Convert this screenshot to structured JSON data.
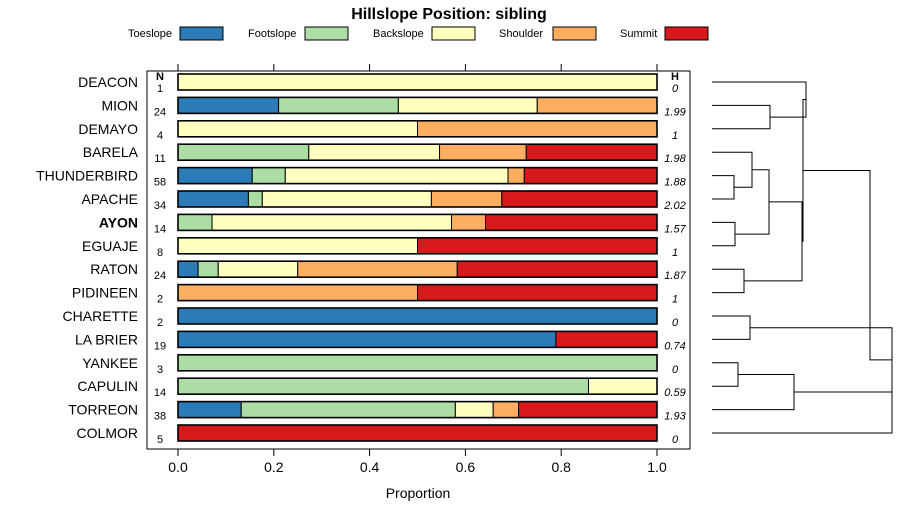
{
  "chart_data": {
    "type": "bar",
    "orientation": "horizontal",
    "stacked": true,
    "title": "Hillslope Position: sibling",
    "xlabel": "Proportion",
    "xlim": [
      0,
      1
    ],
    "x_ticks": [
      "0.0",
      "0.2",
      "0.4",
      "0.6",
      "0.8",
      "1.0"
    ],
    "n_header": "N",
    "h_header": "H",
    "legend_position": "top",
    "series": [
      {
        "name": "Toeslope",
        "color": "#2c7bb6"
      },
      {
        "name": "Footslope",
        "color": "#abdda4"
      },
      {
        "name": "Backslope",
        "color": "#ffffbf"
      },
      {
        "name": "Shoulder",
        "color": "#fdae61"
      },
      {
        "name": "Summit",
        "color": "#d7191c"
      }
    ],
    "rows": [
      {
        "label": "DEACON",
        "n": "1",
        "h": "0",
        "bold": false,
        "values": [
          0,
          0,
          1.0,
          0,
          0
        ]
      },
      {
        "label": "MION",
        "n": "24",
        "h": "1.99",
        "bold": false,
        "values": [
          0.21,
          0.25,
          0.29,
          0.25,
          0
        ]
      },
      {
        "label": "DEMAYO",
        "n": "4",
        "h": "1",
        "bold": false,
        "values": [
          0,
          0,
          0.5,
          0.5,
          0
        ]
      },
      {
        "label": "BARELA",
        "n": "11",
        "h": "1.98",
        "bold": false,
        "values": [
          0,
          0.273,
          0.273,
          0.181,
          0.273
        ]
      },
      {
        "label": "THUNDERBIRD",
        "n": "58",
        "h": "1.88",
        "bold": false,
        "values": [
          0.155,
          0.069,
          0.465,
          0.034,
          0.277
        ]
      },
      {
        "label": "APACHE",
        "n": "34",
        "h": "2.02",
        "bold": false,
        "values": [
          0.147,
          0.029,
          0.353,
          0.147,
          0.324
        ]
      },
      {
        "label": "AYON",
        "n": "14",
        "h": "1.57",
        "bold": true,
        "values": [
          0,
          0.071,
          0.5,
          0.071,
          0.358
        ]
      },
      {
        "label": "EGUAJE",
        "n": "8",
        "h": "1",
        "bold": false,
        "values": [
          0,
          0,
          0.5,
          0,
          0.5
        ]
      },
      {
        "label": "RATON",
        "n": "24",
        "h": "1.87",
        "bold": false,
        "values": [
          0.042,
          0.042,
          0.166,
          0.333,
          0.417
        ]
      },
      {
        "label": "PIDINEEN",
        "n": "2",
        "h": "1",
        "bold": false,
        "values": [
          0,
          0,
          0,
          0.5,
          0.5
        ]
      },
      {
        "label": "CHARETTE",
        "n": "2",
        "h": "0",
        "bold": false,
        "values": [
          1.0,
          0,
          0,
          0,
          0
        ]
      },
      {
        "label": "LA BRIER",
        "n": "19",
        "h": "0.74",
        "bold": false,
        "values": [
          0.789,
          0,
          0,
          0,
          0.211
        ]
      },
      {
        "label": "YANKEE",
        "n": "3",
        "h": "0",
        "bold": false,
        "values": [
          0,
          1.0,
          0,
          0,
          0
        ]
      },
      {
        "label": "CAPULIN",
        "n": "14",
        "h": "0.59",
        "bold": false,
        "values": [
          0,
          0.857,
          0.143,
          0,
          0
        ]
      },
      {
        "label": "TORREON",
        "n": "38",
        "h": "1.93",
        "bold": false,
        "values": [
          0.132,
          0.447,
          0.079,
          0.053,
          0.289
        ]
      },
      {
        "label": "COLMOR",
        "n": "5",
        "h": "0",
        "bold": false,
        "values": [
          0,
          0,
          0,
          0,
          1.0
        ]
      }
    ]
  }
}
